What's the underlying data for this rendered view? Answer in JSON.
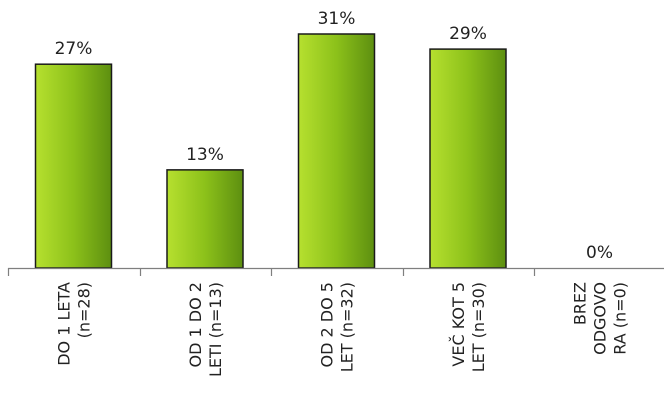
{
  "chart_data": {
    "type": "bar",
    "categories": [
      [
        "DO 1 LETA",
        "(n=28)"
      ],
      [
        "OD 1 DO 2",
        "LETI (n=13)"
      ],
      [
        "OD 2 DO 5",
        "LET (n=32)"
      ],
      [
        "VEČ KOT 5",
        "LET (n=30)"
      ],
      [
        "BREZ",
        "ODGOVO",
        "RA (n=0)"
      ]
    ],
    "values": [
      27,
      13,
      31,
      29,
      0
    ],
    "value_labels": [
      "27%",
      "13%",
      "31%",
      "29%",
      "0%"
    ],
    "title": "",
    "xlabel": "",
    "ylabel": "",
    "ylim": [
      0,
      31
    ],
    "grid": false,
    "legend": "none",
    "colors": {
      "bar_light": "#b6e02f",
      "bar_mid": "#8cc11a",
      "bar_dark": "#5d8f10",
      "bar_outline": "#1a1a1a",
      "axis": "#7f7f7f",
      "text": "#222222"
    }
  }
}
